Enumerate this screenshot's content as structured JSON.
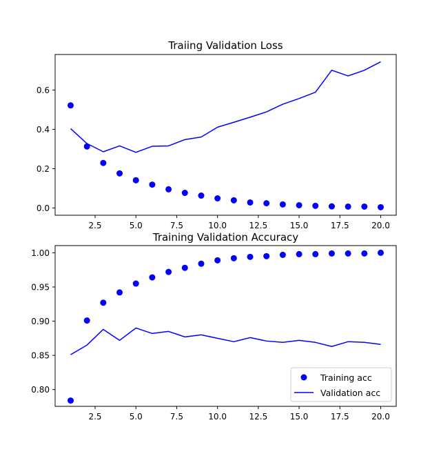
{
  "chart_data": [
    {
      "type": "scatter",
      "title": "Traiing Validation Loss",
      "xlabel": "",
      "ylabel": "",
      "xlim": [
        0.05,
        20.95
      ],
      "ylim": [
        -0.037,
        0.781
      ],
      "xticks": [
        2.5,
        5.0,
        7.5,
        10.0,
        12.5,
        15.0,
        17.5,
        20.0
      ],
      "xtick_labels": [
        "2.5",
        "5.0",
        "7.5",
        "10.0",
        "12.5",
        "15.0",
        "17.5",
        "20.0"
      ],
      "yticks": [
        0.0,
        0.2,
        0.4,
        0.6
      ],
      "ytick_labels": [
        "0.0",
        "0.2",
        "0.4",
        "0.6"
      ],
      "grid": false,
      "x": [
        1,
        2,
        3,
        4,
        5,
        6,
        7,
        8,
        9,
        10,
        11,
        12,
        13,
        14,
        15,
        16,
        17,
        18,
        19,
        20
      ],
      "series": [
        {
          "style": "points",
          "color": "#0000ff",
          "values": [
            0.522,
            0.313,
            0.229,
            0.176,
            0.141,
            0.119,
            0.095,
            0.077,
            0.063,
            0.049,
            0.039,
            0.028,
            0.024,
            0.018,
            0.014,
            0.011,
            0.008,
            0.007,
            0.007,
            0.004
          ]
        },
        {
          "style": "line",
          "color": "#0000ff",
          "values": [
            0.404,
            0.328,
            0.286,
            0.316,
            0.283,
            0.314,
            0.316,
            0.348,
            0.361,
            0.411,
            0.436,
            0.462,
            0.489,
            0.528,
            0.557,
            0.589,
            0.701,
            0.672,
            0.701,
            0.744
          ]
        }
      ]
    },
    {
      "type": "scatter",
      "title": "Training Validation Accuracy",
      "xlabel": "",
      "ylabel": "",
      "xlim": [
        0.05,
        20.95
      ],
      "ylim": [
        0.7755,
        1.0105
      ],
      "xticks": [
        2.5,
        5.0,
        7.5,
        10.0,
        12.5,
        15.0,
        17.5,
        20.0
      ],
      "xtick_labels": [
        "2.5",
        "5.0",
        "7.5",
        "10.0",
        "12.5",
        "15.0",
        "17.5",
        "20.0"
      ],
      "yticks": [
        0.8,
        0.85,
        0.9,
        0.95,
        1.0
      ],
      "ytick_labels": [
        "0.80",
        "0.85",
        "0.90",
        "0.95",
        "1.00"
      ],
      "grid": false,
      "legend": "lower-right",
      "x": [
        1,
        2,
        3,
        4,
        5,
        6,
        7,
        8,
        9,
        10,
        11,
        12,
        13,
        14,
        15,
        16,
        17,
        18,
        19,
        20
      ],
      "series": [
        {
          "name": "Training acc",
          "style": "points",
          "color": "#0000ff",
          "values": [
            0.784,
            0.901,
            0.927,
            0.942,
            0.955,
            0.964,
            0.972,
            0.978,
            0.984,
            0.989,
            0.992,
            0.994,
            0.995,
            0.997,
            0.998,
            0.998,
            0.999,
            0.999,
            0.999,
            1.0
          ]
        },
        {
          "name": "Validation acc",
          "style": "line",
          "color": "#0000ff",
          "values": [
            0.851,
            0.865,
            0.888,
            0.872,
            0.89,
            0.882,
            0.885,
            0.877,
            0.88,
            0.875,
            0.87,
            0.876,
            0.871,
            0.869,
            0.872,
            0.869,
            0.863,
            0.87,
            0.869,
            0.866
          ]
        }
      ]
    }
  ]
}
